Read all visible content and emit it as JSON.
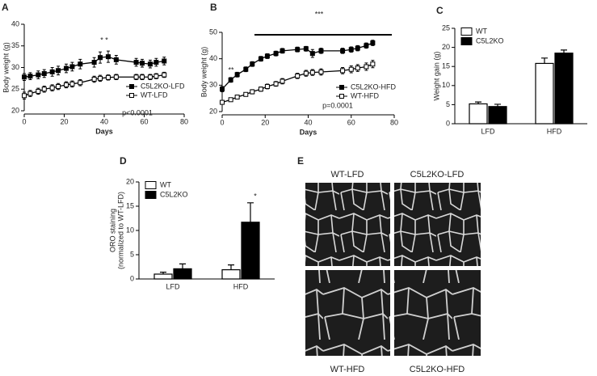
{
  "chart_data": [
    {
      "type": "line",
      "panel": "A",
      "xlabel": "Days",
      "ylabel": "Body weight (g)",
      "x": [
        0,
        3,
        7,
        10,
        14,
        17,
        21,
        24,
        28,
        35,
        38,
        42,
        46,
        56,
        59,
        63,
        66,
        70
      ],
      "xlim": [
        0,
        80
      ],
      "xticks": [
        0,
        20,
        40,
        60,
        80
      ],
      "ylim": [
        20,
        40
      ],
      "yticks": [
        20,
        25,
        30,
        35,
        40
      ],
      "legend": "lower right",
      "series": [
        {
          "name": "C5L2KO-LFD",
          "color": "#000000",
          "marker": "filled",
          "values": [
            27.8,
            28.0,
            28.3,
            28.6,
            29.0,
            29.3,
            29.8,
            30.2,
            30.8,
            31.2,
            32.3,
            32.5,
            31.8,
            31.2,
            31.0,
            30.8,
            31.2,
            31.5
          ],
          "errors": [
            0.8,
            0.8,
            0.9,
            0.9,
            1.0,
            1.0,
            1.0,
            1.0,
            1.1,
            1.1,
            1.3,
            1.3,
            1.0,
            0.9,
            0.9,
            0.9,
            0.9,
            0.9
          ]
        },
        {
          "name": "WT-LFD",
          "color": "#000000",
          "marker": "open",
          "values": [
            23.5,
            24.0,
            24.5,
            25.0,
            25.3,
            25.6,
            26.0,
            26.2,
            26.5,
            27.3,
            27.5,
            27.7,
            27.8,
            27.8,
            27.8,
            27.8,
            28.0,
            28.3
          ],
          "errors": [
            0.8,
            0.7,
            0.7,
            0.7,
            0.7,
            0.7,
            0.7,
            0.7,
            0.7,
            0.7,
            0.7,
            0.6,
            0.6,
            0.6,
            0.6,
            0.6,
            0.6,
            0.6
          ]
        }
      ],
      "annotations": [
        "* *",
        "p<0.0001"
      ]
    },
    {
      "type": "line",
      "panel": "B",
      "xlabel": "Days",
      "ylabel": "Body weight (g)",
      "x": [
        0,
        4,
        7,
        11,
        14,
        18,
        21,
        25,
        28,
        35,
        39,
        42,
        46,
        56,
        60,
        63,
        67,
        70
      ],
      "xlim": [
        0,
        80
      ],
      "xticks": [
        0,
        20,
        40,
        60,
        80
      ],
      "ylim": [
        20,
        50
      ],
      "yticks": [
        20,
        30,
        40,
        50
      ],
      "legend": "lower right",
      "series": [
        {
          "name": "C5L2KO-HFD",
          "color": "#000000",
          "marker": "filled",
          "values": [
            28.5,
            32.0,
            34.0,
            36.0,
            38.0,
            40.0,
            41.0,
            42.0,
            43.0,
            43.5,
            43.8,
            42.0,
            43.0,
            43.0,
            43.5,
            44.0,
            45.0,
            46.0
          ],
          "errors": [
            1.0,
            0.9,
            0.9,
            0.9,
            0.9,
            0.9,
            0.9,
            0.9,
            0.9,
            0.9,
            0.9,
            1.5,
            1.0,
            1.0,
            1.0,
            1.0,
            1.0,
            1.0
          ]
        },
        {
          "name": "WT-HFD",
          "color": "#000000",
          "marker": "open",
          "values": [
            23.5,
            24.5,
            25.5,
            26.5,
            27.5,
            28.5,
            29.5,
            30.5,
            31.5,
            33.5,
            34.5,
            34.8,
            35.0,
            35.5,
            36.0,
            36.5,
            37.0,
            38.0
          ],
          "errors": [
            0.6,
            0.6,
            0.7,
            0.7,
            0.8,
            0.8,
            0.9,
            0.9,
            1.0,
            1.0,
            1.1,
            1.1,
            1.2,
            1.2,
            1.3,
            1.3,
            1.4,
            1.4
          ]
        }
      ],
      "annotations": [
        "**",
        "***",
        "p=0.0001"
      ]
    },
    {
      "type": "bar",
      "panel": "C",
      "ylabel": "Weight gain (g)",
      "categories": [
        "LFD",
        "HFD"
      ],
      "ylim": [
        0,
        25
      ],
      "yticks": [
        0,
        5,
        10,
        15,
        20,
        25
      ],
      "legend": "upper left",
      "series": [
        {
          "name": "WT",
          "color": "#ffffff",
          "values": [
            5.2,
            15.8
          ],
          "errors": [
            0.5,
            1.4
          ]
        },
        {
          "name": "C5L2KO",
          "color": "#000000",
          "values": [
            4.5,
            18.5
          ],
          "errors": [
            0.6,
            0.8
          ]
        }
      ]
    },
    {
      "type": "bar",
      "panel": "D",
      "ylabel": [
        "ORO staining",
        "(normalized to WT-LFD)"
      ],
      "categories": [
        "LFD",
        "HFD"
      ],
      "ylim": [
        0,
        20
      ],
      "yticks": [
        0,
        5,
        10,
        15,
        20
      ],
      "legend": "upper left",
      "series": [
        {
          "name": "WT",
          "color": "#ffffff",
          "values": [
            1.0,
            1.9
          ],
          "errors": [
            0.4,
            1.0
          ]
        },
        {
          "name": "C5L2KO",
          "color": "#000000",
          "values": [
            2.1,
            11.7
          ],
          "errors": [
            1.0,
            4.0
          ]
        }
      ],
      "annotations": [
        "*"
      ]
    }
  ],
  "micrographs": {
    "panel": "E",
    "labels": [
      "WT-LFD",
      "C5L2KO-LFD",
      "WT-HFD",
      "C5L2KO-HFD"
    ]
  }
}
